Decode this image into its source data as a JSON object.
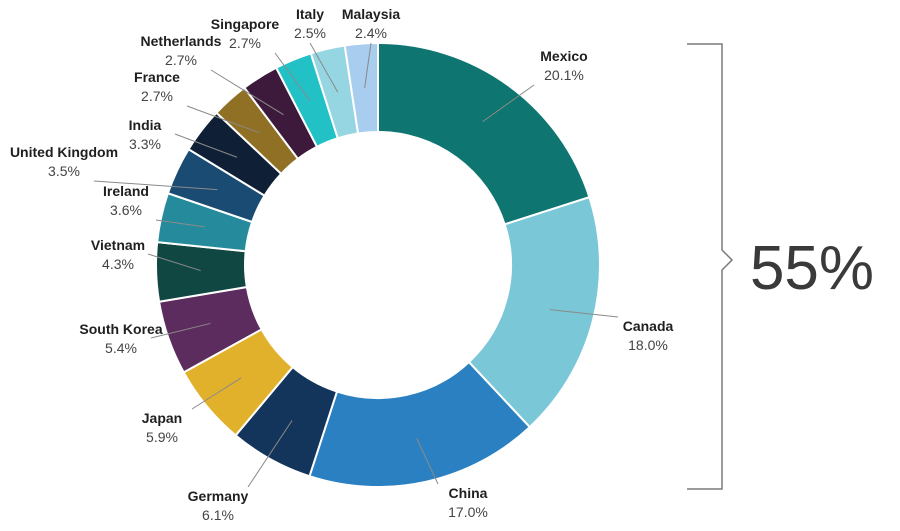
{
  "chart_data": {
    "type": "pie",
    "title": "",
    "series": [
      {
        "values": [
          {
            "label": "Mexico",
            "value": 20.1,
            "value_label": "20.1%",
            "color": "#0e7570"
          },
          {
            "label": "Canada",
            "value": 18.0,
            "value_label": "18.0%",
            "color": "#7ac7d8"
          },
          {
            "label": "China",
            "value": 17.0,
            "value_label": "17.0%",
            "color": "#2a80c0"
          },
          {
            "label": "Germany",
            "value": 6.1,
            "value_label": "6.1%",
            "color": "#13345b"
          },
          {
            "label": "Japan",
            "value": 5.9,
            "value_label": "5.9%",
            "color": "#e2b12b"
          },
          {
            "label": "South Korea",
            "value": 5.4,
            "value_label": "5.4%",
            "color": "#5b2c5d"
          },
          {
            "label": "Vietnam",
            "value": 4.3,
            "value_label": "4.3%",
            "color": "#114743"
          },
          {
            "label": "Ireland",
            "value": 3.6,
            "value_label": "3.6%",
            "color": "#258b9c"
          },
          {
            "label": "United Kingdom",
            "value": 3.5,
            "value_label": "3.5%",
            "color": "#1a4b73"
          },
          {
            "label": "India",
            "value": 3.3,
            "value_label": "3.3%",
            "color": "#0f1f36"
          },
          {
            "label": "France",
            "value": 2.7,
            "value_label": "2.7%",
            "color": "#8f7024"
          },
          {
            "label": "Netherlands",
            "value": 2.7,
            "value_label": "2.7%",
            "color": "#3d1a3b"
          },
          {
            "label": "Singapore",
            "value": 2.7,
            "value_label": "2.7%",
            "color": "#22c1c6"
          },
          {
            "label": "Italy",
            "value": 2.5,
            "value_label": "2.5%",
            "color": "#96d6e2"
          },
          {
            "label": "Malaysia",
            "value": 2.4,
            "value_label": "2.4%",
            "color": "#a8cdee"
          }
        ]
      }
    ],
    "annotation": {
      "text": "55%",
      "spans": [
        "Mexico",
        "Canada",
        "China"
      ]
    }
  }
}
